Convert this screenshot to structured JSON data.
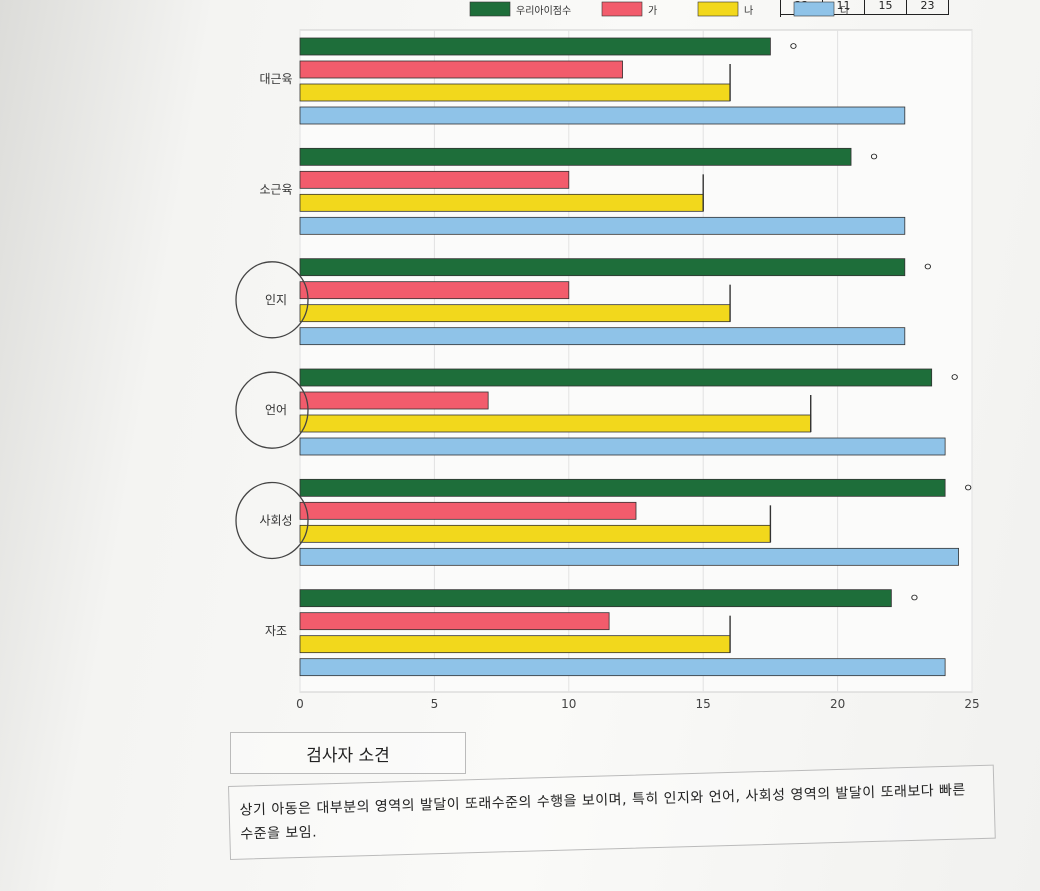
{
  "top_table": {
    "cells": [
      "22",
      "11",
      "15",
      "23"
    ]
  },
  "chart_data": {
    "type": "bar",
    "orientation": "horizontal",
    "categories": [
      "대근육",
      "소근육",
      "인지",
      "언어",
      "사회성",
      "자조"
    ],
    "series": [
      {
        "name": "우리아이점수",
        "color": "#1e6e3a",
        "values": [
          17.5,
          20.5,
          22.5,
          23.5,
          24,
          22
        ]
      },
      {
        "name": "가",
        "color": "#f25c6c",
        "values": [
          12,
          10,
          10,
          7,
          12.5,
          11.5
        ]
      },
      {
        "name": "나",
        "color": "#f2d81c",
        "values": [
          16,
          15,
          16,
          19,
          17.5,
          16
        ]
      },
      {
        "name": "다",
        "color": "#8fc3e8",
        "values": [
          22.5,
          22.5,
          22.5,
          24,
          24.5,
          24
        ]
      }
    ],
    "x_ticks": [
      "0",
      "5",
      "10",
      "15",
      "20",
      "25"
    ],
    "xlim": [
      0,
      25
    ],
    "legend": "top",
    "grid": true,
    "circled_categories": [
      "인지",
      "언어",
      "사회성"
    ],
    "annotations": [
      "ㅇ",
      "ㅇ",
      "ㅇ",
      "ㅇ",
      "ㅇ",
      "ㅇ"
    ]
  },
  "opinion": {
    "title": "검사자 소견",
    "text": "상기 아동은 대부분의 영역의 발달이 또래수준의 수행을 보이며, 특히 인지와 언어, 사회성 영역의 발달이 또래보다 빠른 수준을 보임."
  }
}
